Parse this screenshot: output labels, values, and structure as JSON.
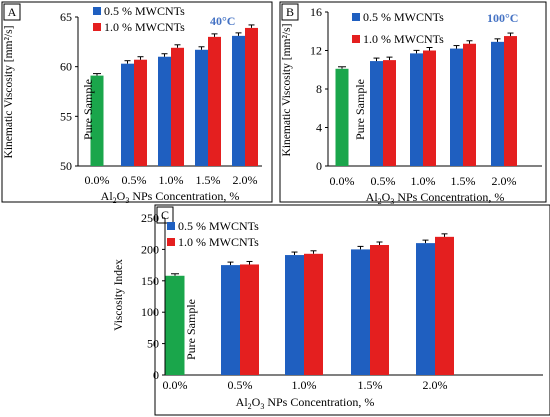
{
  "colors": {
    "pure": "#1aa64b",
    "mw05": "#1f5fc0",
    "mw10": "#e41f1f",
    "temp": "#4472c4",
    "axis": "#000000"
  },
  "chart_data": [
    {
      "type": "bar",
      "panel_label": "A",
      "temperature_label": "40°C",
      "ylabel": "Kinematic Viscosity [mm²/s]",
      "xlabel_parts": [
        "Al",
        "2",
        "O",
        "3",
        " NPs Concentration, %"
      ],
      "categories": [
        "0.0%",
        "0.5%",
        "1.0%",
        "1.5%",
        "2.0%"
      ],
      "ylim": [
        50,
        65
      ],
      "yticks": [
        50,
        55,
        60,
        65
      ],
      "pure_label": "Pure Sample",
      "pure_value": 59.1,
      "series": [
        {
          "name": "0.5 % MWCNTs",
          "values": [
            null,
            60.3,
            61.0,
            61.7,
            63.1
          ]
        },
        {
          "name": "1.0 % MWCNTs",
          "values": [
            null,
            60.7,
            61.9,
            63.0,
            63.9
          ]
        }
      ],
      "legend": "top-left"
    },
    {
      "type": "bar",
      "panel_label": "B",
      "temperature_label": "100°C",
      "ylabel": "Kinematic Viscosity [mm²/s]",
      "xlabel_parts": [
        "Al",
        "2",
        "O",
        "3",
        " NPs Concentration, %"
      ],
      "categories": [
        "0.0%",
        "0.5%",
        "1.0%",
        "1.5%",
        "2.0%"
      ],
      "ylim": [
        0,
        16
      ],
      "yticks": [
        0,
        4,
        8,
        12,
        16
      ],
      "pure_label": "Pure Sample",
      "pure_value": 10.1,
      "series": [
        {
          "name": "0.5 % MWCNTs",
          "values": [
            null,
            10.9,
            11.7,
            12.2,
            12.9
          ]
        },
        {
          "name": "1.0 % MWCNTs",
          "values": [
            null,
            11.0,
            12.0,
            12.7,
            13.5
          ]
        }
      ],
      "legend": "top-left"
    },
    {
      "type": "bar",
      "panel_label": "C",
      "ylabel": "Viscosity Index",
      "xlabel_parts": [
        "Al",
        "2",
        "O",
        "3",
        " NPs Concentration, %"
      ],
      "categories": [
        "0.0%",
        "0.5%",
        "1.0%",
        "1.5%",
        "2.0%"
      ],
      "ylim": [
        0,
        250
      ],
      "yticks": [
        0,
        50,
        100,
        150,
        200,
        250
      ],
      "pure_label": "Pure Sample",
      "pure_value": 158,
      "series": [
        {
          "name": "0.5 % MWCNTs",
          "values": [
            null,
            175,
            191,
            200,
            210
          ]
        },
        {
          "name": "1.0 % MWCNTs",
          "values": [
            null,
            176,
            193,
            207,
            220
          ]
        }
      ],
      "legend": "top-left"
    }
  ]
}
